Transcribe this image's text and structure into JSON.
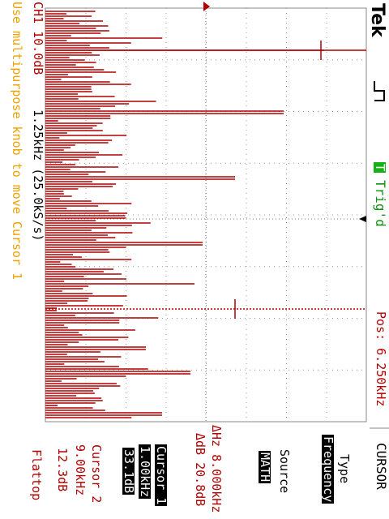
{
  "header": {
    "brand": "Tek",
    "trigger_status": "Trig'd"
  },
  "top_left": {
    "channel_scale": "CH1 10.0dB",
    "span": "1.25kHz (25.0kS/s)",
    "hint": "Use multipurpose knob to move Cursor 1"
  },
  "position": "Pos: 6.250kHz",
  "menu": {
    "title": "CURSOR",
    "type_label": "Type",
    "type_value": "Frequency",
    "source_label": "Source",
    "source_value": "MATH",
    "delta_hz": "ΔHz 8.000kHz",
    "delta_db": "ΔdB 20.8dB",
    "cursor1_label": "Cursor 1",
    "cursor1_freq": "1.00kHz",
    "cursor1_db": "33.1dB",
    "cursor2_label": "Cursor 2",
    "cursor2_freq": "9.00kHz",
    "cursor2_db": "12.3dB",
    "window": "Flattop"
  },
  "colors": {
    "trace": "#b00000",
    "text_red": "#b00000",
    "hint": "#f0a000",
    "trig_green": "#18b018"
  }
}
